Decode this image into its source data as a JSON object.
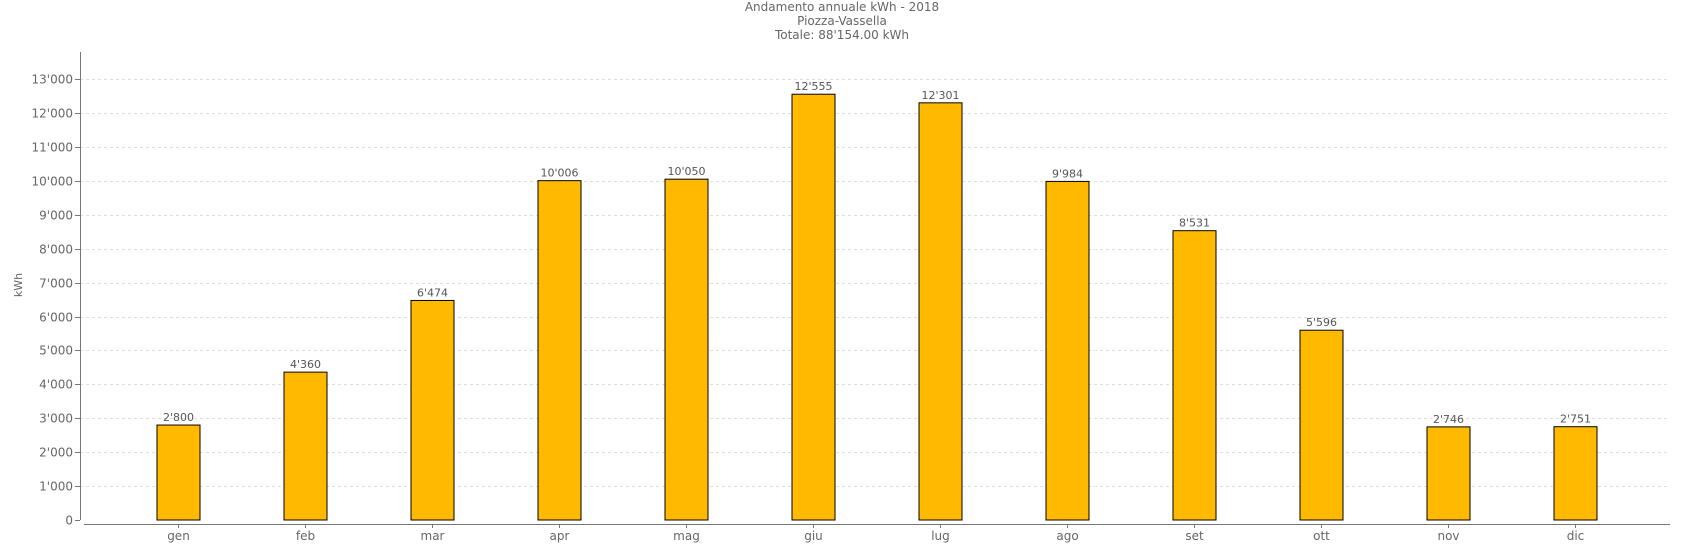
{
  "chart_data": {
    "type": "bar",
    "title": "Andamento annuale kWh - 2018",
    "subtitle": "Piozza-Vassella",
    "total_line": "Totale: 88'154.00 kWh",
    "xlabel": "",
    "ylabel": "kWh",
    "categories": [
      "gen",
      "feb",
      "mar",
      "apr",
      "mag",
      "giu",
      "lug",
      "ago",
      "set",
      "ott",
      "nov",
      "dic"
    ],
    "values": [
      2800,
      4360,
      6474,
      10006,
      10050,
      12555,
      12301,
      9984,
      8531,
      5596,
      2746,
      2751
    ],
    "value_labels": [
      "2'800",
      "4'360",
      "6'474",
      "10'006",
      "10'050",
      "12'555",
      "12'301",
      "9'984",
      "8'531",
      "5'596",
      "2'746",
      "2'751"
    ],
    "ylim": [
      0,
      13800
    ],
    "yticks": [
      0,
      1000,
      2000,
      3000,
      4000,
      5000,
      6000,
      7000,
      8000,
      9000,
      10000,
      11000,
      12000,
      13000
    ],
    "ytick_labels": [
      "0",
      "1'000",
      "2'000",
      "3'000",
      "4'000",
      "5'000",
      "6'000",
      "7'000",
      "8'000",
      "9'000",
      "10'000",
      "11'000",
      "12'000",
      "13'000"
    ],
    "grid": true,
    "legend": "none",
    "bar_color": "#FFBA00"
  }
}
